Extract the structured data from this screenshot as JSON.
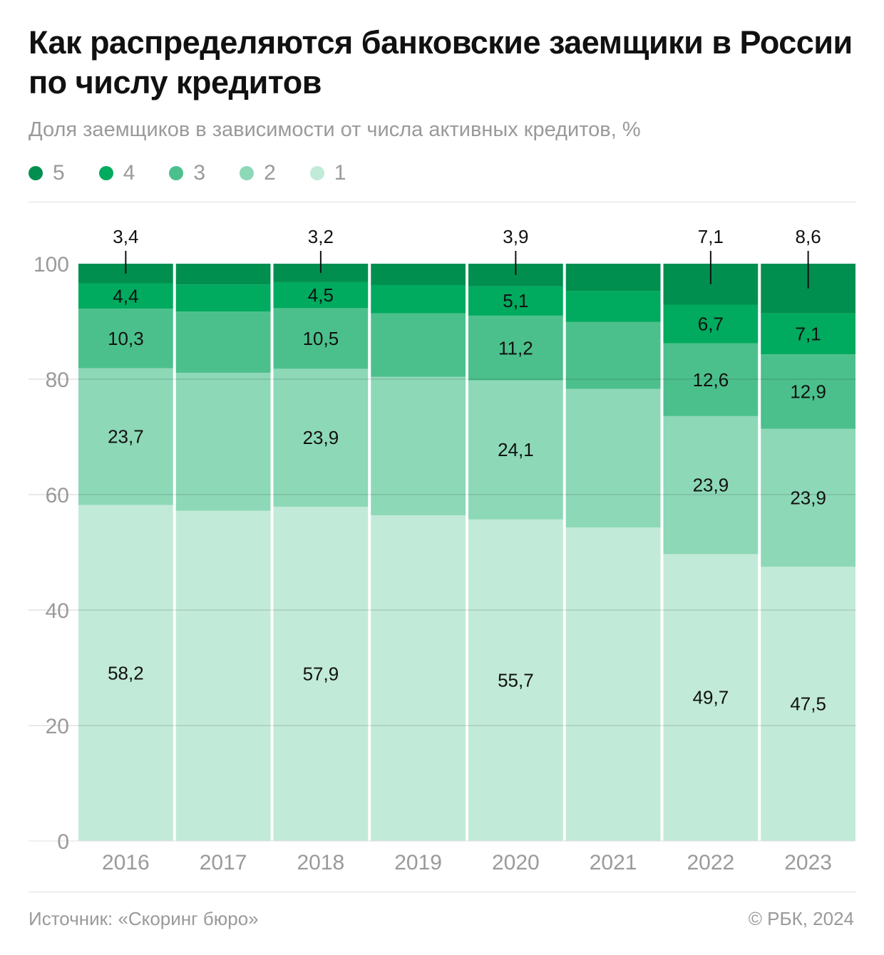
{
  "title": "Как распределяются банковские заемщики в России по числу кредитов",
  "subtitle": "Доля заемщиков в зависимости от числа активных кредитов, %",
  "source": "Источник: «Скоринг бюро»",
  "credit": "© РБК, 2024",
  "chart_data": {
    "type": "bar",
    "stacked": true,
    "categories": [
      "2016",
      "2017",
      "2018",
      "2019",
      "2020",
      "2021",
      "2022",
      "2023"
    ],
    "ylim": [
      0,
      100
    ],
    "yticks": [
      0,
      20,
      40,
      60,
      80,
      100
    ],
    "grid": true,
    "legend_placement": "top-left",
    "series": [
      {
        "name": "1",
        "color": "#c2ead8",
        "values": [
          58.2,
          57.2,
          57.9,
          56.4,
          55.7,
          54.3,
          49.7,
          47.5
        ]
      },
      {
        "name": "2",
        "color": "#8dd8b7",
        "values": [
          23.7,
          23.9,
          23.9,
          24.0,
          24.1,
          24.0,
          23.9,
          23.9
        ]
      },
      {
        "name": "3",
        "color": "#4cc08c",
        "values": [
          10.3,
          10.6,
          10.5,
          11.0,
          11.2,
          11.6,
          12.6,
          12.9
        ]
      },
      {
        "name": "4",
        "color": "#00aa5e",
        "values": [
          4.4,
          4.7,
          4.5,
          4.9,
          5.1,
          5.4,
          6.7,
          7.1
        ]
      },
      {
        "name": "5",
        "color": "#008f4f",
        "values": [
          3.4,
          3.6,
          3.2,
          3.7,
          3.9,
          4.7,
          7.1,
          8.6
        ]
      }
    ],
    "data_labels": {
      "2016": [
        "58,2",
        "23,7",
        "10,3",
        "4,4",
        "3,4"
      ],
      "2018": [
        "57,9",
        "23,9",
        "10,5",
        "4,5",
        "3,2"
      ],
      "2020": [
        "55,7",
        "24,1",
        "11,2",
        "5,1",
        "3,9"
      ],
      "2022": [
        "49,7",
        "23,9",
        "12,6",
        "6,7",
        "7,1"
      ],
      "2023": [
        "47,5",
        "23,9",
        "12,9",
        "7,1",
        "8,6"
      ]
    },
    "legend_order": [
      "5",
      "4",
      "3",
      "2",
      "1"
    ]
  }
}
